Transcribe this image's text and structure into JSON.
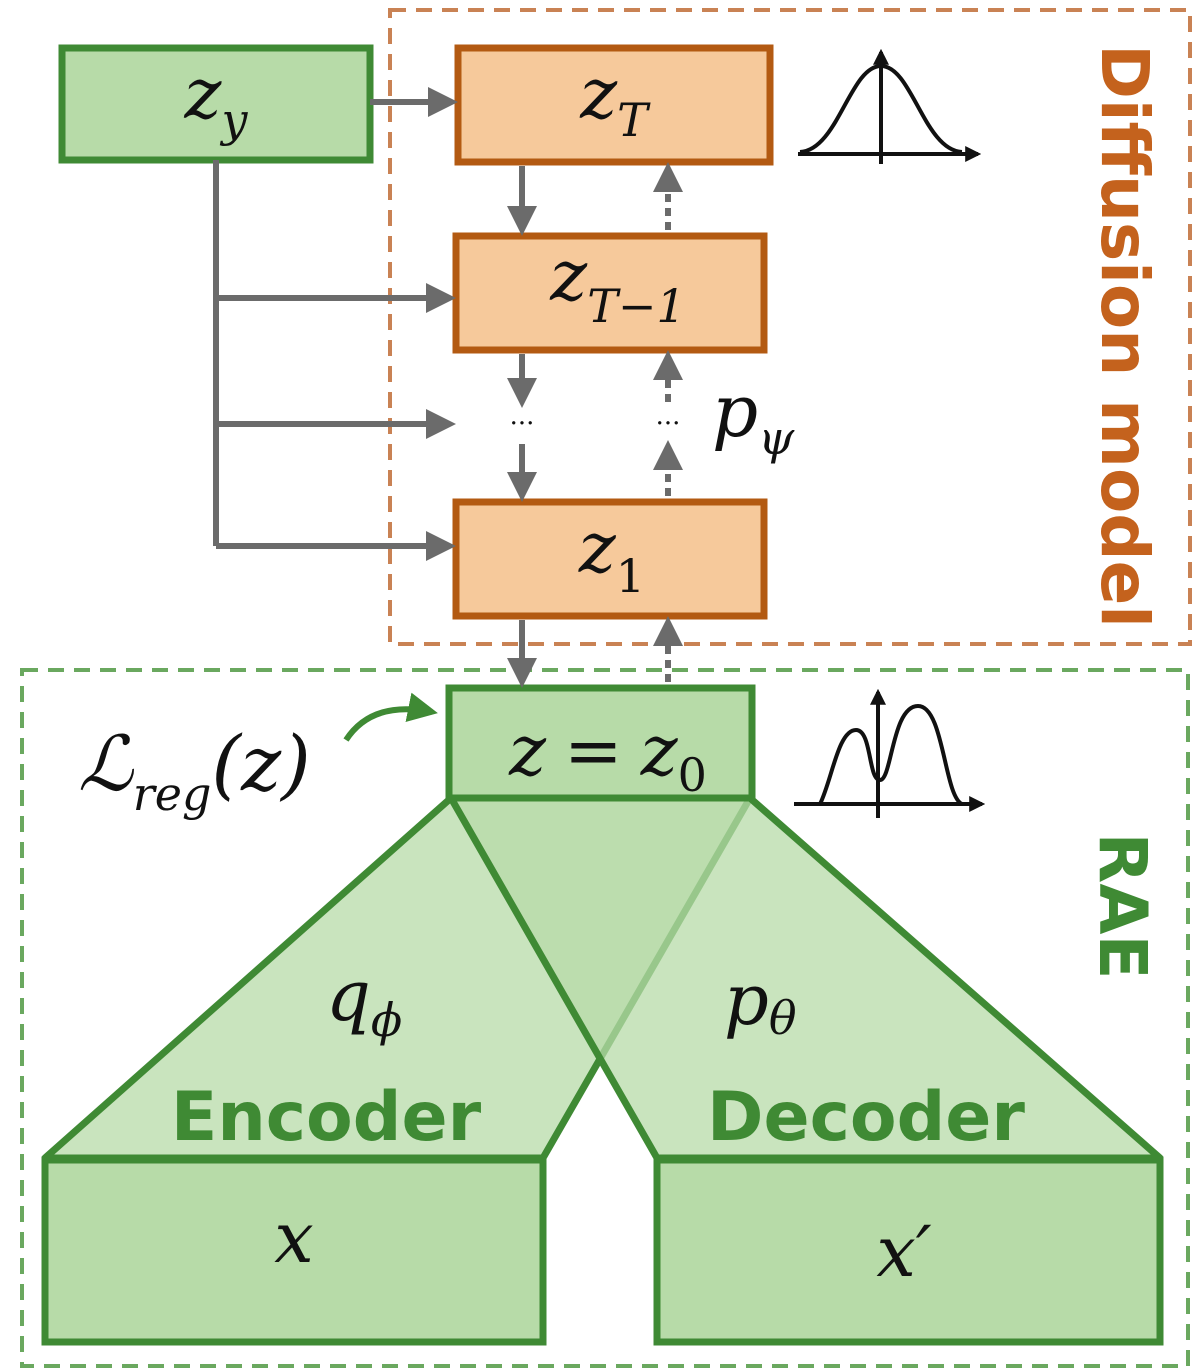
{
  "colors": {
    "green_stroke": "#3f8a34",
    "green_fill": "#b7dba8",
    "green_fill_light": "#cde6c1",
    "orange_stroke": "#b35a12",
    "orange_fill": "#f6c99b",
    "gray_arrow": "#6b6b6b",
    "diffusion_border": "#c98254",
    "rae_border": "#6aa85f"
  },
  "diffusion": {
    "title": "Diffusion model",
    "zT": {
      "base": "z",
      "sub": "T"
    },
    "zT1": {
      "base": "z",
      "sub": "T−1"
    },
    "z1": {
      "base": "z",
      "sub": "1"
    },
    "ellipsis": "···",
    "p_psi": {
      "base": "p",
      "sub": "ψ"
    }
  },
  "condition": {
    "zy": {
      "base": "z",
      "sub": "y"
    }
  },
  "rae": {
    "title": "RAE",
    "z0": {
      "lhs": "z",
      "eq": "=",
      "base": "z",
      "sub": "0"
    },
    "reg_loss": {
      "script": "ℒ",
      "sub": "reg",
      "arg": "(z)"
    },
    "encoder": {
      "label": "Encoder",
      "q_phi": {
        "base": "q",
        "sub": "ϕ"
      }
    },
    "decoder": {
      "label": "Decoder",
      "p_theta": {
        "base": "p",
        "sub": "θ"
      }
    },
    "x": "x",
    "x_prime": "x′"
  },
  "icons": [
    "gaussian-curve-icon",
    "bimodal-curve-icon"
  ]
}
